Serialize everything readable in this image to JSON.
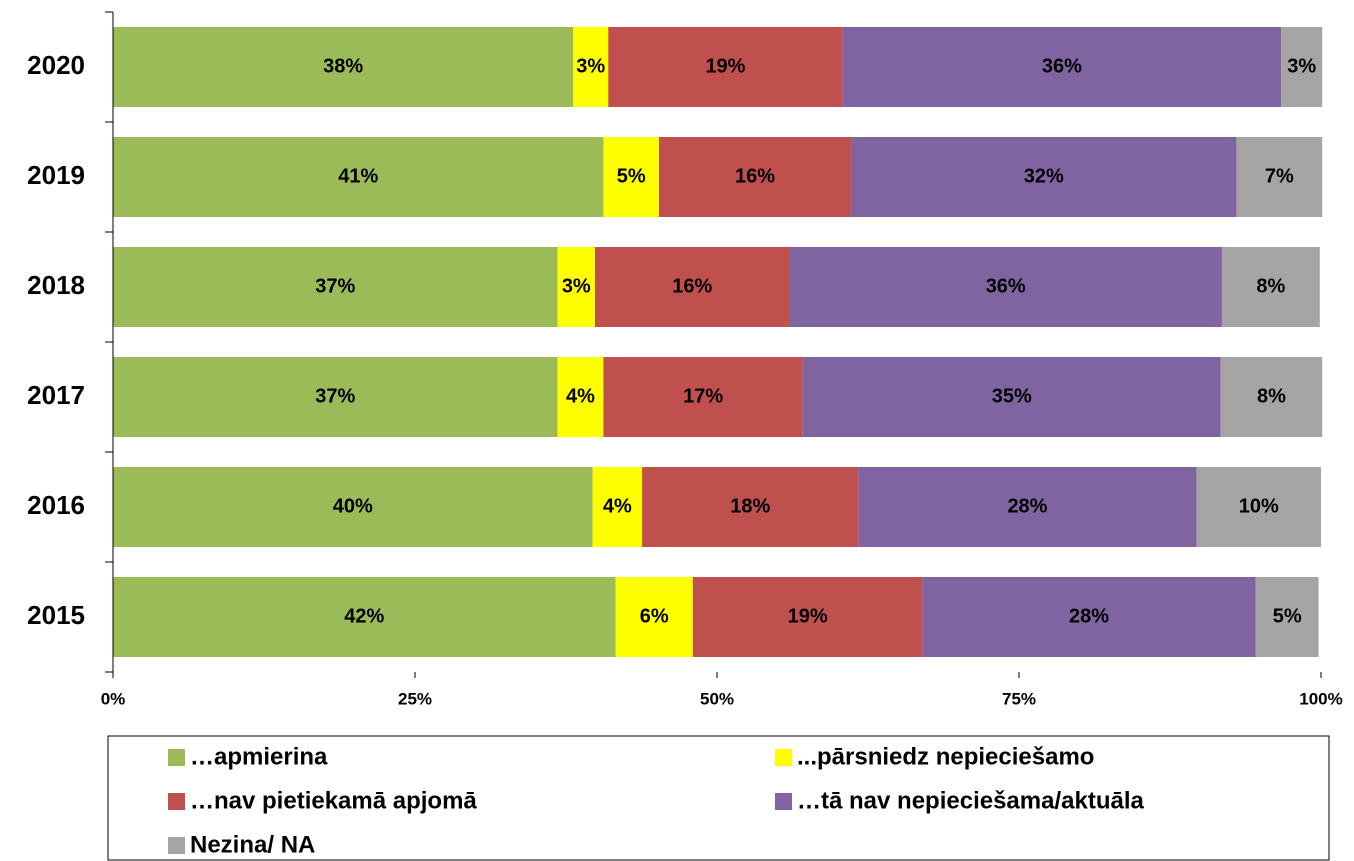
{
  "chart_data": {
    "type": "stacked-bar-horizontal",
    "categories": [
      "2020",
      "2019",
      "2018",
      "2017",
      "2016",
      "2015"
    ],
    "series": [
      {
        "name": "…apmierina",
        "color": "#9bbb59",
        "values": [
          38.1,
          40.6,
          36.8,
          36.8,
          39.7,
          41.6
        ],
        "value_labels": [
          "38%",
          "41%",
          "37%",
          "37%",
          "40%",
          "42%"
        ]
      },
      {
        "name": "...pārsniedz nepieciešamo",
        "color": "#ffff00",
        "values": [
          2.9,
          4.6,
          3.1,
          3.8,
          4.1,
          6.4
        ],
        "value_labels": [
          "3%",
          "5%",
          "3%",
          "4%",
          "4%",
          "6%"
        ]
      },
      {
        "name": "…nav pietiekamā apjomā",
        "color": "#c0504d",
        "values": [
          19.4,
          15.9,
          16.1,
          16.5,
          17.9,
          19.0
        ],
        "value_labels": [
          "19%",
          "16%",
          "16%",
          "17%",
          "18%",
          "19%"
        ]
      },
      {
        "name": "…tā nav nepieciešama/aktuāla",
        "color": "#8064a2",
        "values": [
          36.3,
          31.9,
          35.8,
          34.6,
          28.0,
          27.6
        ],
        "value_labels": [
          "36%",
          "32%",
          "36%",
          "35%",
          "28%",
          "28%"
        ]
      },
      {
        "name": "Nezina/ NA",
        "color": "#a5a5a5",
        "values": [
          3.4,
          7.1,
          8.1,
          8.4,
          10.3,
          5.2
        ],
        "value_labels": [
          "3%",
          "7%",
          "8%",
          "8%",
          "10%",
          "5%"
        ]
      }
    ],
    "xlim": [
      0,
      100
    ],
    "xticks": [
      {
        "value": 0,
        "label": "0%"
      },
      {
        "value": 25,
        "label": "25%"
      },
      {
        "value": 50,
        "label": "50%"
      },
      {
        "value": 75,
        "label": "75%"
      },
      {
        "value": 100,
        "label": "100%"
      }
    ],
    "legend": "bottom"
  }
}
